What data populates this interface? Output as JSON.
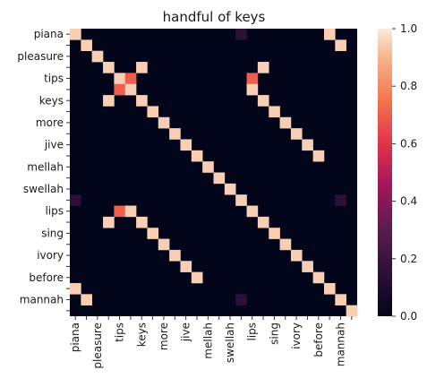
{
  "chart_data": {
    "type": "heatmap",
    "title": "handful of keys",
    "rows": [
      "piana",
      "",
      "pleasure",
      "",
      "tips",
      "",
      "keys",
      "",
      "more",
      "",
      "jive",
      "",
      "mellah",
      "",
      "swellah",
      "",
      "lips",
      "",
      "sing",
      "",
      "ivory",
      "",
      "before",
      "",
      "mannah",
      ""
    ],
    "columns": [
      "piana",
      "",
      "pleasure",
      "",
      "tips",
      "",
      "keys",
      "",
      "more",
      "",
      "jive",
      "",
      "mellah",
      "",
      "swellah",
      "",
      "lips",
      "",
      "sing",
      "",
      "ivory",
      "",
      "before",
      "",
      "mannah",
      ""
    ],
    "cells": [
      [
        0,
        0,
        0.95
      ],
      [
        0,
        15,
        0.15
      ],
      [
        0,
        23,
        0.95
      ],
      [
        1,
        1,
        0.95
      ],
      [
        1,
        24,
        0.95
      ],
      [
        2,
        2,
        0.95
      ],
      [
        3,
        3,
        0.95
      ],
      [
        3,
        6,
        0.95
      ],
      [
        3,
        17,
        0.95
      ],
      [
        4,
        4,
        0.95
      ],
      [
        4,
        5,
        0.7
      ],
      [
        4,
        16,
        0.7
      ],
      [
        5,
        4,
        0.7
      ],
      [
        5,
        5,
        0.95
      ],
      [
        5,
        16,
        0.95
      ],
      [
        6,
        3,
        0.95
      ],
      [
        6,
        6,
        0.95
      ],
      [
        6,
        17,
        0.95
      ],
      [
        7,
        7,
        0.95
      ],
      [
        7,
        18,
        0.95
      ],
      [
        8,
        8,
        0.95
      ],
      [
        8,
        19,
        0.95
      ],
      [
        9,
        9,
        0.95
      ],
      [
        9,
        20,
        0.95
      ],
      [
        10,
        10,
        0.95
      ],
      [
        10,
        21,
        0.95
      ],
      [
        11,
        11,
        0.95
      ],
      [
        11,
        22,
        0.95
      ],
      [
        12,
        12,
        0.95
      ],
      [
        13,
        13,
        0.95
      ],
      [
        14,
        14,
        0.95
      ],
      [
        15,
        0,
        0.15
      ],
      [
        15,
        15,
        0.95
      ],
      [
        15,
        24,
        0.15
      ],
      [
        16,
        4,
        0.7
      ],
      [
        16,
        5,
        0.95
      ],
      [
        16,
        16,
        0.95
      ],
      [
        17,
        3,
        0.95
      ],
      [
        17,
        6,
        0.95
      ],
      [
        17,
        17,
        0.95
      ],
      [
        18,
        7,
        0.95
      ],
      [
        18,
        18,
        0.95
      ],
      [
        19,
        8,
        0.95
      ],
      [
        19,
        19,
        0.95
      ],
      [
        20,
        9,
        0.95
      ],
      [
        20,
        20,
        0.95
      ],
      [
        21,
        10,
        0.95
      ],
      [
        21,
        21,
        0.95
      ],
      [
        22,
        11,
        0.95
      ],
      [
        22,
        22,
        0.95
      ],
      [
        23,
        0,
        0.95
      ],
      [
        23,
        23,
        0.95
      ],
      [
        24,
        1,
        0.95
      ],
      [
        24,
        15,
        0.15
      ],
      [
        24,
        24,
        0.95
      ],
      [
        25,
        25,
        0.95
      ]
    ],
    "colorbar": {
      "min": 0.0,
      "max": 1.0,
      "ticks": [
        "0.0",
        "0.2",
        "0.4",
        "0.6",
        "0.8",
        "1.0"
      ],
      "tick_values": [
        0,
        0.2,
        0.4,
        0.6,
        0.8,
        1.0
      ]
    },
    "colormap": "rocket",
    "background_color": "#03051a"
  }
}
